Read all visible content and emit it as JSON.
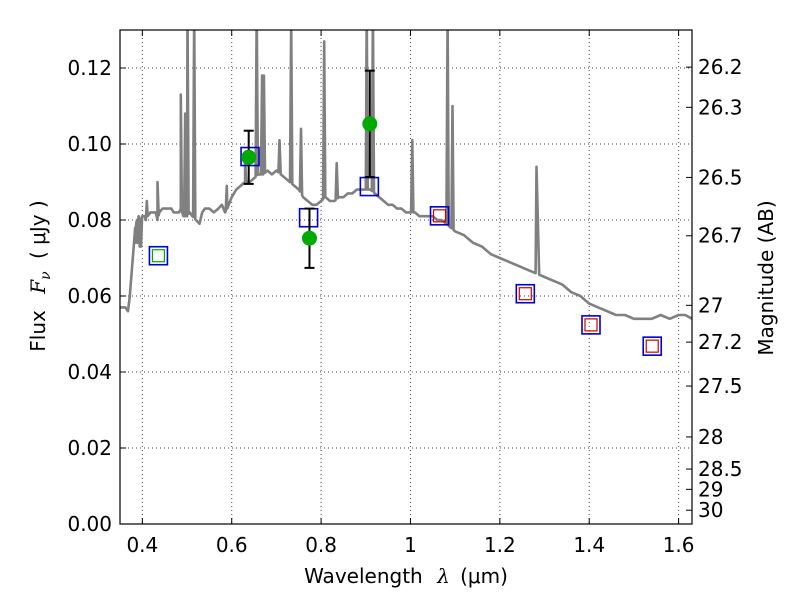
{
  "chart_data": {
    "type": "scatter",
    "xlabel_prefix": "Wavelength",
    "xlabel_symbol": "λ",
    "xlabel_unit": "(μm)",
    "ylabel_prefix": "Flux",
    "ylabel_symbol": "F",
    "ylabel_subscript": "ν",
    "ylabel_unit": "( μJy )",
    "y2label": "Magnitude (AB)",
    "xlim": [
      0.35,
      1.63
    ],
    "ylim": [
      0.0,
      0.13
    ],
    "x_ticks": [
      {
        "value": 0.4,
        "label": "0.4"
      },
      {
        "value": 0.6,
        "label": "0.6"
      },
      {
        "value": 0.8,
        "label": "0.8"
      },
      {
        "value": 1.0,
        "label": "1"
      },
      {
        "value": 1.2,
        "label": "1.2"
      },
      {
        "value": 1.4,
        "label": "1.4"
      },
      {
        "value": 1.6,
        "label": "1.6"
      }
    ],
    "y_ticks": [
      {
        "value": 0.0,
        "label": "0.00"
      },
      {
        "value": 0.02,
        "label": "0.02"
      },
      {
        "value": 0.04,
        "label": "0.04"
      },
      {
        "value": 0.06,
        "label": "0.06"
      },
      {
        "value": 0.08,
        "label": "0.08"
      },
      {
        "value": 0.1,
        "label": "0.10"
      },
      {
        "value": 0.12,
        "label": "0.12"
      }
    ],
    "y2_ticks": [
      {
        "value": 26.2,
        "label": "26.2"
      },
      {
        "value": 26.3,
        "label": "26.3"
      },
      {
        "value": 26.5,
        "label": "26.5"
      },
      {
        "value": 26.7,
        "label": "26.7"
      },
      {
        "value": 27.0,
        "label": "27"
      },
      {
        "value": 27.2,
        "label": "27.2"
      },
      {
        "value": 27.5,
        "label": "27.5"
      },
      {
        "value": 28.0,
        "label": "28"
      },
      {
        "value": 28.5,
        "label": "28.5"
      },
      {
        "value": 29.0,
        "label": "29"
      },
      {
        "value": 30.0,
        "label": "30"
      }
    ],
    "grid": true,
    "colors": {
      "spectrum": "#808080",
      "model_box": "#0000cc",
      "measured": "#00aa00",
      "inner_box_green": "#00aa00",
      "inner_box_red": "#cc0000",
      "errorbar": "#000000"
    },
    "spectrum": [
      [
        0.35,
        0.057
      ],
      [
        0.362,
        0.057
      ],
      [
        0.368,
        0.056
      ],
      [
        0.372,
        0.06
      ],
      [
        0.376,
        0.066
      ],
      [
        0.38,
        0.072
      ],
      [
        0.384,
        0.078
      ],
      [
        0.388,
        0.08
      ],
      [
        0.392,
        0.081
      ],
      [
        0.396,
        0.08
      ],
      [
        0.4,
        0.081
      ],
      [
        0.405,
        0.081
      ],
      [
        0.408,
        0.08
      ],
      [
        0.412,
        0.081
      ],
      [
        0.418,
        0.082
      ],
      [
        0.425,
        0.082
      ],
      [
        0.43,
        0.082
      ],
      [
        0.434,
        0.08
      ],
      [
        0.438,
        0.082
      ],
      [
        0.445,
        0.083
      ],
      [
        0.455,
        0.083
      ],
      [
        0.465,
        0.083
      ],
      [
        0.47,
        0.082
      ],
      [
        0.476,
        0.082
      ],
      [
        0.482,
        0.082
      ],
      [
        0.486,
        0.083
      ],
      [
        0.492,
        0.081
      ],
      [
        0.5,
        0.081
      ],
      [
        0.506,
        0.082
      ],
      [
        0.512,
        0.081
      ],
      [
        0.52,
        0.08
      ],
      [
        0.528,
        0.079
      ],
      [
        0.534,
        0.082
      ],
      [
        0.54,
        0.083
      ],
      [
        0.55,
        0.083
      ],
      [
        0.56,
        0.082
      ],
      [
        0.57,
        0.083
      ],
      [
        0.578,
        0.084
      ],
      [
        0.585,
        0.082
      ],
      [
        0.59,
        0.083
      ],
      [
        0.6,
        0.086
      ],
      [
        0.61,
        0.088
      ],
      [
        0.62,
        0.089
      ],
      [
        0.63,
        0.09
      ],
      [
        0.64,
        0.09
      ],
      [
        0.65,
        0.091
      ],
      [
        0.66,
        0.092
      ],
      [
        0.67,
        0.092
      ],
      [
        0.68,
        0.093
      ],
      [
        0.69,
        0.092
      ],
      [
        0.7,
        0.093
      ],
      [
        0.71,
        0.092
      ],
      [
        0.72,
        0.091
      ],
      [
        0.73,
        0.09
      ],
      [
        0.74,
        0.089
      ],
      [
        0.75,
        0.088
      ],
      [
        0.76,
        0.086
      ],
      [
        0.77,
        0.085
      ],
      [
        0.78,
        0.084
      ],
      [
        0.79,
        0.084
      ],
      [
        0.8,
        0.085
      ],
      [
        0.81,
        0.086
      ],
      [
        0.82,
        0.085
      ],
      [
        0.83,
        0.085
      ],
      [
        0.84,
        0.086
      ],
      [
        0.85,
        0.086
      ],
      [
        0.86,
        0.087
      ],
      [
        0.87,
        0.087
      ],
      [
        0.88,
        0.088
      ],
      [
        0.89,
        0.088
      ],
      [
        0.9,
        0.088
      ],
      [
        0.91,
        0.088
      ],
      [
        0.92,
        0.087
      ],
      [
        0.93,
        0.086
      ],
      [
        0.94,
        0.085
      ],
      [
        0.95,
        0.084
      ],
      [
        0.96,
        0.084
      ],
      [
        0.97,
        0.083
      ],
      [
        0.98,
        0.083
      ],
      [
        0.99,
        0.082
      ],
      [
        1.0,
        0.082
      ],
      [
        1.01,
        0.082
      ],
      [
        1.02,
        0.081
      ],
      [
        1.03,
        0.081
      ],
      [
        1.04,
        0.081
      ],
      [
        1.05,
        0.081
      ],
      [
        1.06,
        0.08
      ],
      [
        1.07,
        0.08
      ],
      [
        1.08,
        0.079
      ],
      [
        1.09,
        0.078
      ],
      [
        1.1,
        0.077
      ],
      [
        1.12,
        0.076
      ],
      [
        1.14,
        0.074
      ],
      [
        1.16,
        0.073
      ],
      [
        1.18,
        0.071
      ],
      [
        1.2,
        0.07
      ],
      [
        1.22,
        0.069
      ],
      [
        1.24,
        0.068
      ],
      [
        1.26,
        0.067
      ],
      [
        1.28,
        0.066
      ],
      [
        1.3,
        0.065
      ],
      [
        1.32,
        0.064
      ],
      [
        1.34,
        0.063
      ],
      [
        1.36,
        0.061
      ],
      [
        1.38,
        0.06
      ],
      [
        1.4,
        0.058
      ],
      [
        1.42,
        0.057
      ],
      [
        1.44,
        0.056
      ],
      [
        1.46,
        0.055
      ],
      [
        1.48,
        0.055
      ],
      [
        1.5,
        0.054
      ],
      [
        1.52,
        0.054
      ],
      [
        1.54,
        0.054
      ],
      [
        1.56,
        0.055
      ],
      [
        1.58,
        0.054
      ],
      [
        1.6,
        0.055
      ],
      [
        1.615,
        0.055
      ],
      [
        1.63,
        0.054
      ]
    ],
    "emission_lines": [
      {
        "x": 0.384,
        "peak": 0.074
      },
      {
        "x": 0.389,
        "peak": 0.074
      },
      {
        "x": 0.394,
        "peak": 0.073
      },
      {
        "x": 0.397,
        "peak": 0.073
      },
      {
        "x": 0.41,
        "peak": 0.085
      },
      {
        "x": 0.434,
        "peak": 0.09
      },
      {
        "x": 0.486,
        "peak": 0.113
      },
      {
        "x": 0.496,
        "peak": 0.108
      },
      {
        "x": 0.501,
        "peak": 0.135
      },
      {
        "x": 0.516,
        "peak": 0.135
      },
      {
        "x": 0.589,
        "peak": 0.089
      },
      {
        "x": 0.63,
        "peak": 0.096
      },
      {
        "x": 0.656,
        "peak": 0.135
      },
      {
        "x": 0.668,
        "peak": 0.118
      },
      {
        "x": 0.672,
        "peak": 0.118
      },
      {
        "x": 0.707,
        "peak": 0.101
      },
      {
        "x": 0.733,
        "peak": 0.132
      },
      {
        "x": 0.755,
        "peak": 0.104
      },
      {
        "x": 0.807,
        "peak": 0.127
      },
      {
        "x": 0.835,
        "peak": 0.095
      },
      {
        "x": 0.902,
        "peak": 0.135
      },
      {
        "x": 0.916,
        "peak": 0.135
      },
      {
        "x": 1.004,
        "peak": 0.101
      },
      {
        "x": 1.083,
        "peak": 0.135
      },
      {
        "x": 1.094,
        "peak": 0.11
      },
      {
        "x": 1.282,
        "peak": 0.094
      }
    ],
    "model_points": [
      {
        "x": 0.436,
        "y": 0.0706,
        "inner": "green"
      },
      {
        "x": 0.641,
        "y": 0.0967,
        "inner": "none"
      },
      {
        "x": 0.772,
        "y": 0.0806,
        "inner": "none"
      },
      {
        "x": 0.908,
        "y": 0.0888,
        "inner": "none"
      },
      {
        "x": 1.065,
        "y": 0.0811,
        "inner": "red"
      },
      {
        "x": 1.257,
        "y": 0.0606,
        "inner": "red"
      },
      {
        "x": 1.404,
        "y": 0.0524,
        "inner": "red"
      },
      {
        "x": 1.541,
        "y": 0.0468,
        "inner": "red"
      }
    ],
    "measured_points": [
      {
        "x": 0.638,
        "y": 0.0965,
        "err": 0.007
      },
      {
        "x": 0.774,
        "y": 0.0752,
        "err": 0.0078
      },
      {
        "x": 0.909,
        "y": 0.1053,
        "err": 0.014
      }
    ]
  }
}
